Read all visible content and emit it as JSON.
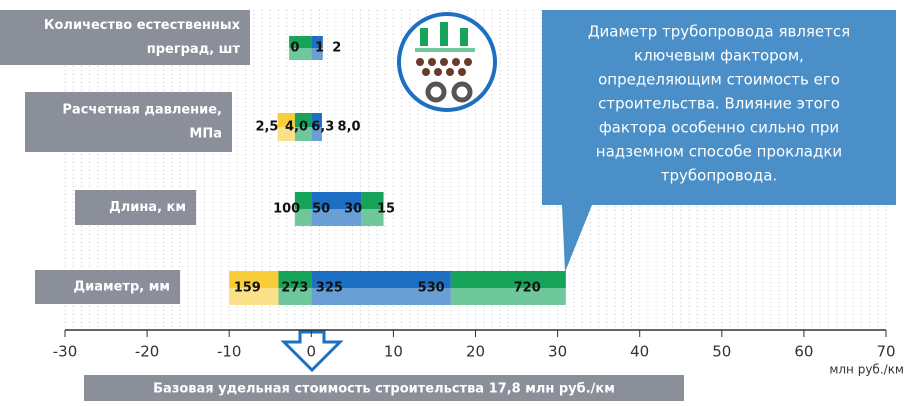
{
  "chart_data": {
    "type": "range-bars",
    "xlim": [
      -30,
      70
    ],
    "xticks": [
      -30,
      -20,
      -10,
      0,
      10,
      20,
      30,
      40,
      50,
      60,
      70
    ],
    "x_unit": "млн руб./км",
    "grid": true,
    "grid_step": 1,
    "base_label": "Базовая удельная стоимость строительства 17,8 млн руб./км",
    "note": [
      "Диаметр трубопровода является",
      "ключевым фактором,",
      "определяющим стоимость его",
      "строительства. Влияние этого",
      "фактора особенно сильно при",
      "надземном способе прокладки",
      "трубопровода."
    ],
    "colors": {
      "yellow": [
        "#f9cd3a",
        "#fbe08a"
      ],
      "green": [
        "#17a35a",
        "#6fc89b"
      ],
      "blue": [
        "#1c6fc3",
        "#6a9fd6"
      ]
    },
    "rows": [
      {
        "name": [
          "Количество естественных",
          "преград, шт"
        ],
        "segments": [
          {
            "from": -2.7,
            "to": 0,
            "color": "green"
          },
          {
            "from": 0,
            "to": 1.4,
            "color": "blue"
          }
        ],
        "labels": [
          {
            "text": "0",
            "x": -2
          },
          {
            "text": "1",
            "x": 1
          },
          {
            "text": "2",
            "x": 3.1
          }
        ]
      },
      {
        "name": [
          "Расчетная давление,",
          "МПа"
        ],
        "segments": [
          {
            "from": -4.1,
            "to": -2,
            "color": "yellow"
          },
          {
            "from": -2,
            "to": 0,
            "color": "green"
          },
          {
            "from": 0,
            "to": 1.3,
            "color": "blue"
          }
        ],
        "labels": [
          {
            "text": "2,5",
            "x": -5.4
          },
          {
            "text": "4,0",
            "x": -1.8
          },
          {
            "text": "6,3",
            "x": 1.4
          },
          {
            "text": "8,0",
            "x": 4.6
          }
        ]
      },
      {
        "name": [
          "Длина, км"
        ],
        "segments": [
          {
            "from": -2,
            "to": 0,
            "color": "green"
          },
          {
            "from": 0,
            "to": 6.1,
            "color": "blue"
          },
          {
            "from": 6.1,
            "to": 8.8,
            "color": "green"
          }
        ],
        "labels": [
          {
            "text": "100",
            "x": -3
          },
          {
            "text": "50",
            "x": 1.2
          },
          {
            "text": "30",
            "x": 5.1
          },
          {
            "text": "15",
            "x": 9.1
          }
        ]
      },
      {
        "name": [
          "Диаметр, мм"
        ],
        "segments": [
          {
            "from": -10,
            "to": -4,
            "color": "yellow"
          },
          {
            "from": -4,
            "to": 0,
            "color": "green"
          },
          {
            "from": 0,
            "to": 17,
            "color": "blue"
          },
          {
            "from": 17,
            "to": 31,
            "color": "green"
          }
        ],
        "labels": [
          {
            "text": "159",
            "x": -7.8
          },
          {
            "text": "273",
            "x": -2
          },
          {
            "text": "325",
            "x": 2.2
          },
          {
            "text": "530",
            "x": 14.6
          },
          {
            "text": "720",
            "x": 26.3
          }
        ]
      }
    ]
  }
}
